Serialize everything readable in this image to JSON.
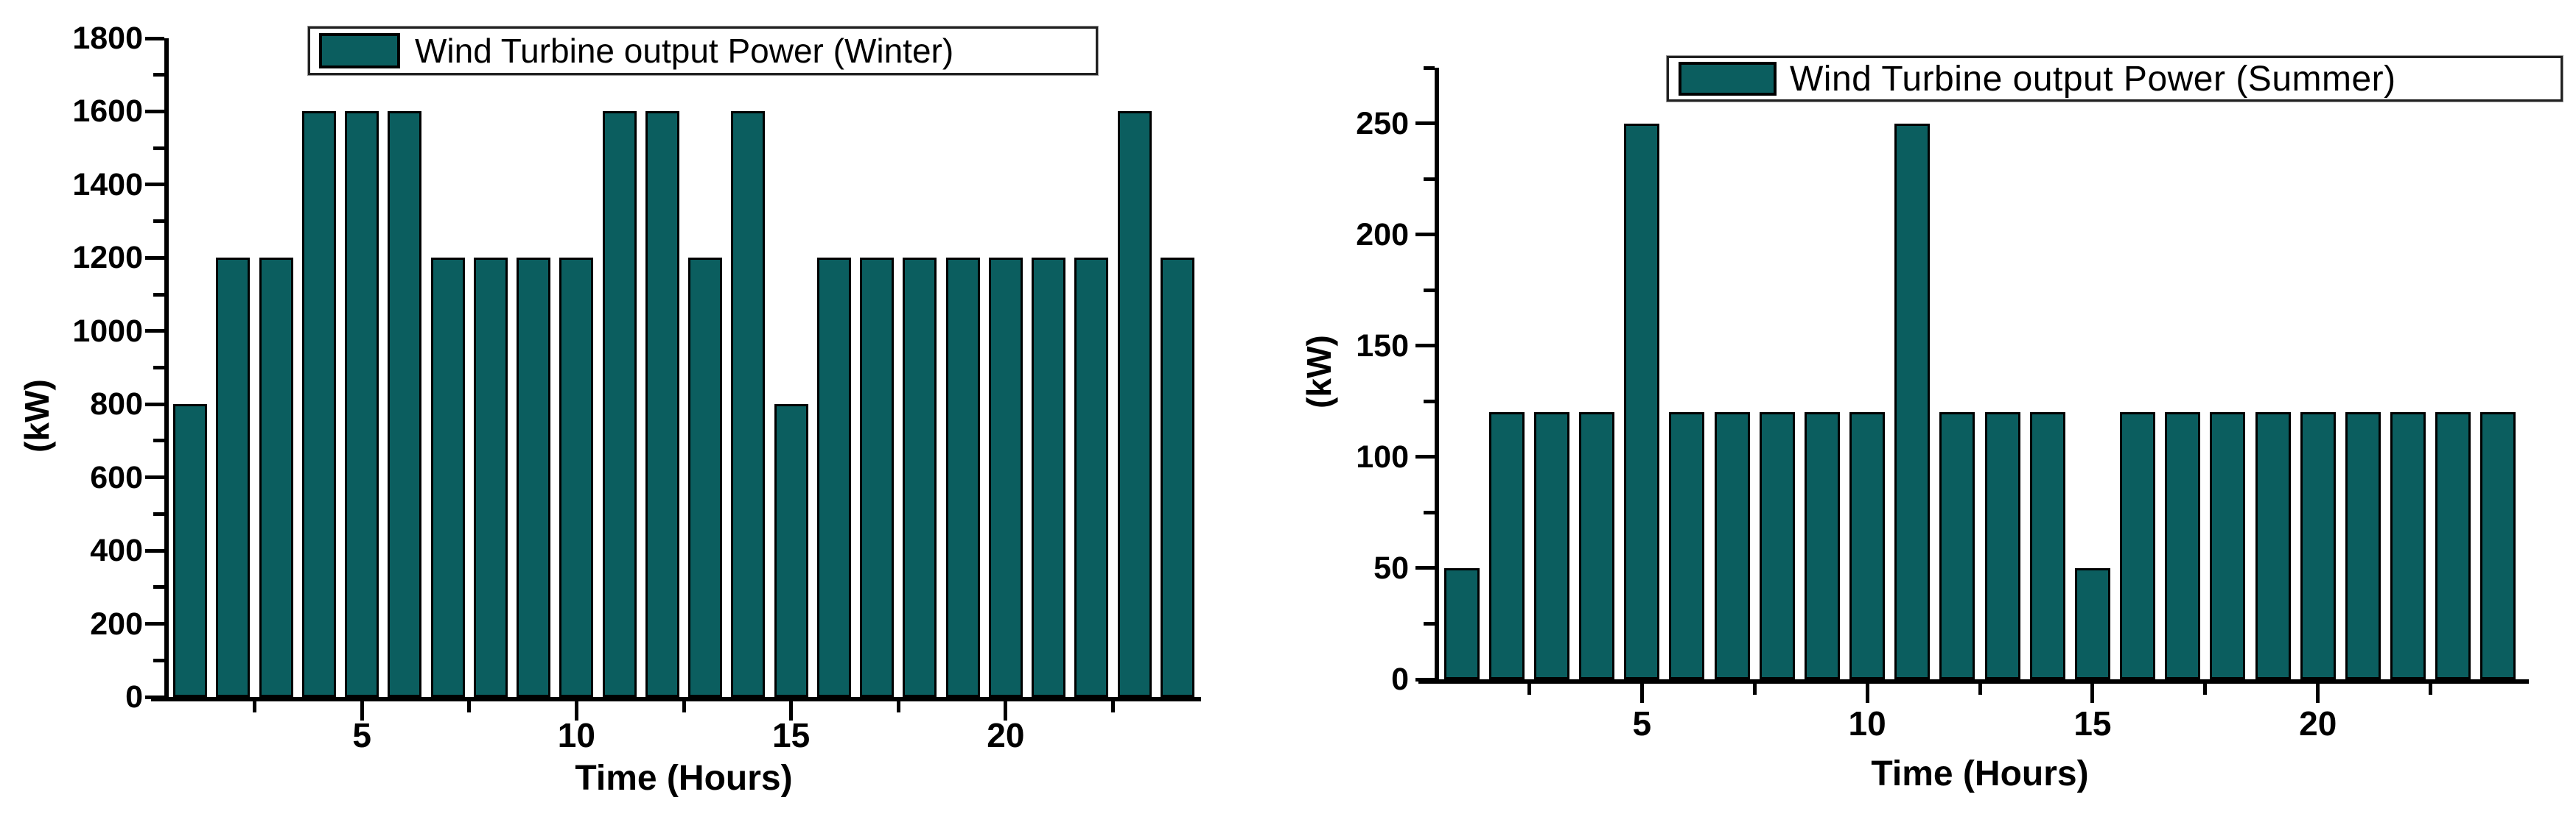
{
  "figure": {
    "background": "#ffffff",
    "bar_fill": "#0B5E5F",
    "bar_edge": "#000000",
    "axis_color": "#000000",
    "text_color": "#000000"
  },
  "chart_data": [
    {
      "type": "bar",
      "title": "",
      "legend_label": "Wind Turbine output Power (Winter)",
      "legend_position": "top-center-inside",
      "xlabel": "Time (Hours)",
      "ylabel": "(kW)",
      "x": [
        1,
        2,
        3,
        4,
        5,
        6,
        7,
        8,
        9,
        10,
        11,
        12,
        13,
        14,
        15,
        16,
        17,
        18,
        19,
        20,
        21,
        22,
        23,
        24
      ],
      "values": [
        800,
        1200,
        1200,
        1600,
        1600,
        1600,
        1200,
        1200,
        1200,
        1200,
        1600,
        1600,
        1200,
        1600,
        800,
        1200,
        1200,
        1200,
        1200,
        1200,
        1200,
        1200,
        1600,
        1200
      ],
      "ylim": [
        0,
        1800
      ],
      "yticks": [
        0,
        200,
        400,
        600,
        800,
        1000,
        1200,
        1400,
        1600,
        1800
      ],
      "yticks_minor": [
        100,
        300,
        500,
        700,
        900,
        1100,
        1300,
        1500,
        1700
      ],
      "xticks": [
        5,
        10,
        15,
        20
      ],
      "xticks_minor": [
        2.5,
        7.5,
        12.5,
        17.5,
        22.5
      ],
      "grid": false,
      "bar_color": "#0B5E5F",
      "bar_edge_color": "#000000"
    },
    {
      "type": "bar",
      "title": "",
      "legend_label": "Wind Turbine output Power (Summer)",
      "legend_position": "top-right-inside",
      "xlabel": "Time (Hours)",
      "ylabel": "(kW)",
      "x": [
        1,
        2,
        3,
        4,
        5,
        6,
        7,
        8,
        9,
        10,
        11,
        12,
        13,
        14,
        15,
        16,
        17,
        18,
        19,
        20,
        21,
        22,
        23,
        24
      ],
      "values": [
        50,
        120,
        120,
        120,
        250,
        120,
        120,
        120,
        120,
        120,
        250,
        120,
        120,
        120,
        50,
        120,
        120,
        120,
        120,
        120,
        120,
        120,
        120,
        120
      ],
      "ylim": [
        0,
        275
      ],
      "yticks": [
        0,
        50,
        100,
        150,
        200,
        250
      ],
      "yticks_minor": [
        25,
        75,
        125,
        175,
        225,
        275
      ],
      "xticks": [
        5,
        10,
        15,
        20
      ],
      "xticks_minor": [
        2.5,
        7.5,
        12.5,
        17.5,
        22.5
      ],
      "grid": false,
      "bar_color": "#0B5E5F",
      "bar_edge_color": "#000000"
    }
  ]
}
